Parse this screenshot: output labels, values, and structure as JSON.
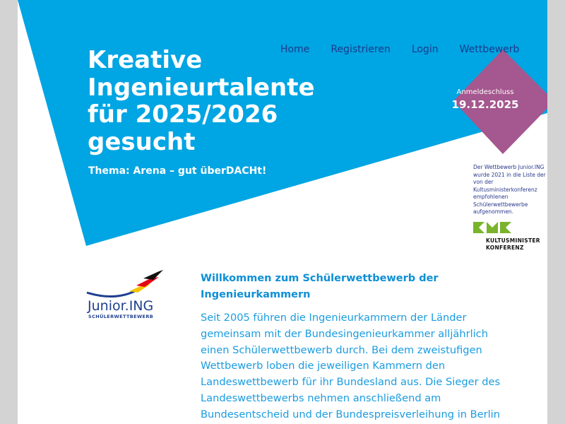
{
  "nav": {
    "items": [
      {
        "label": "Home"
      },
      {
        "label": "Registrieren"
      },
      {
        "label": "Login"
      },
      {
        "label": "Wettbewerb"
      }
    ]
  },
  "hero": {
    "title": "Kreative Ingenieurtalente für 2025/2026 gesucht",
    "theme": "Thema: Arena – gut überDACHt!",
    "deadline_label": "Anmeldeschluss",
    "deadline_date": "19.12.2025"
  },
  "kmk": {
    "note": "Der Wettbewerb Junior.ING wurde 2021 in die Liste der von der Kultusministerkonferenz empfohlenen Schülerwettbewerbe aufgenommen.",
    "name_line1": "KULTUSMINISTER",
    "name_line2": "KONFERENZ"
  },
  "logo": {
    "name": "Junior.ING",
    "subtitle": "SCHÜLERWETTBEWERB"
  },
  "main": {
    "heading": "Willkommen zum Schülerwettbewerb der Ingenieurkammern",
    "text": "Seit 2005 führen die Ingenieurkammern der Länder gemeinsam mit der Bundesingenieurkammer alljährlich einen Schülerwettbewerb durch. Bei dem zweistufigen Wettbewerb loben die jeweiligen Kammern den Landeswettbewerb für ihr Bundesland aus. Die Sieger des Landeswettbewerbs nehmen anschließend am Bundesentscheid und der Bundespreisverleihung in Berlin"
  },
  "colors": {
    "hero_blue": "#00a5e3",
    "diamond": "#a5578f",
    "nav": "#1c3a8c",
    "kmk_green": "#7ab42c"
  }
}
